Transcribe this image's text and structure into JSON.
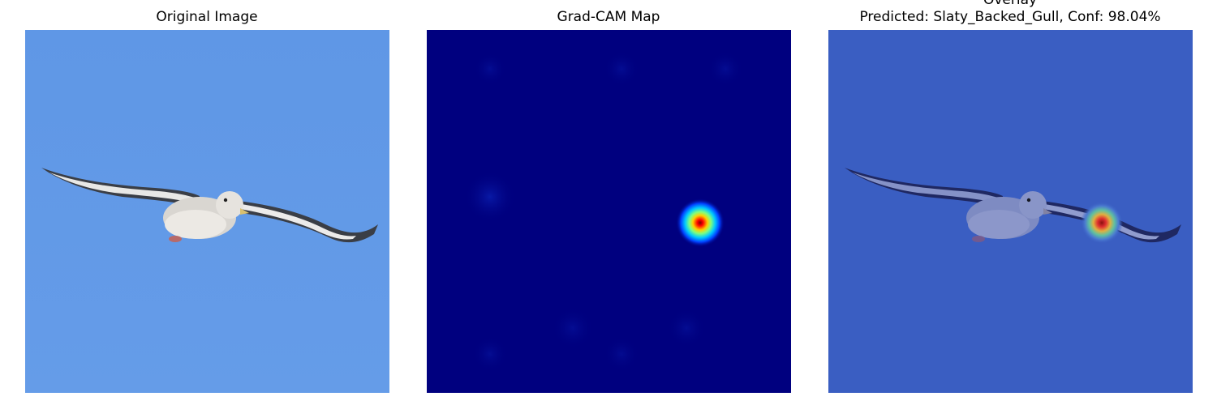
{
  "panels": [
    {
      "title": "Original Image",
      "content": "photo of a gull in flight against blue sky"
    },
    {
      "title": "Grad-CAM Map",
      "content": "jet-colormap heatmap with single hotspot"
    },
    {
      "title": "Overlay\nPredicted: Slaty_Backed_Gull, Conf: 98.04%",
      "content": "heatmap overlaid on photo"
    }
  ],
  "colors": {
    "sky": "#6199e6",
    "heatmap_background": "#00007f",
    "overlay_tint": "#3a5ec2",
    "hotspot_core": "#8b0000"
  }
}
